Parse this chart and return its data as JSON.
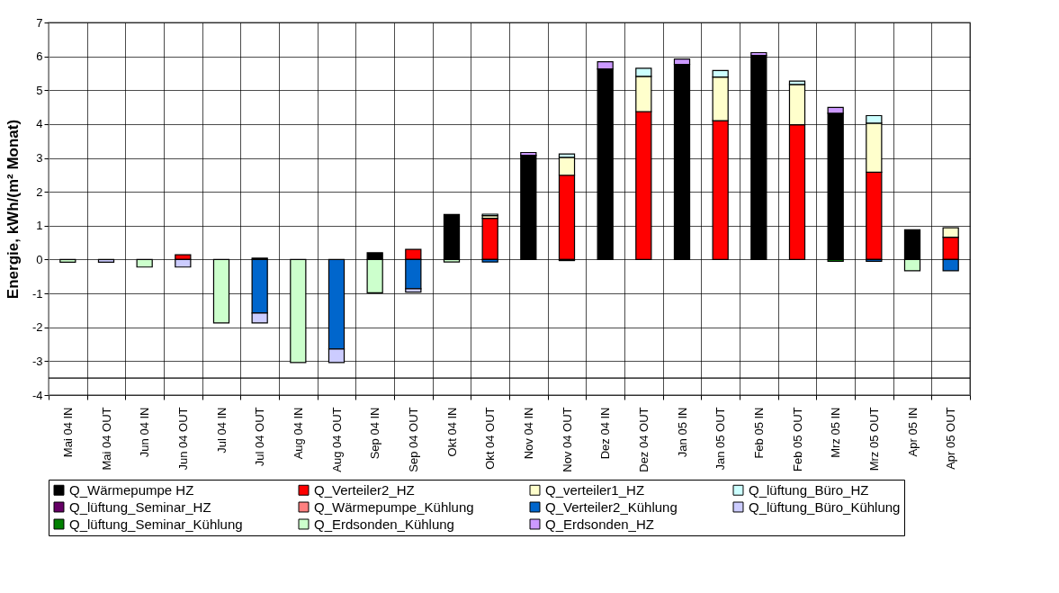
{
  "chart_data": {
    "type": "bar",
    "stacked": true,
    "ylabel": "Energie, kWh/(m² Monat)",
    "categories": [
      "Mai 04 IN",
      "Mai 04 OUT",
      "Jun 04 IN",
      "Jun 04 OUT",
      "Jul 04 IN",
      "Jul 04 OUT",
      "Aug 04 IN",
      "Aug 04 OUT",
      "Sep 04 IN",
      "Sep 04 OUT",
      "Okt 04 IN",
      "Okt 04 OUT",
      "Nov 04 IN",
      "Nov 04 OUT",
      "Dez 04 IN",
      "Dez 04 OUT",
      "Jan 05 IN",
      "Jan 05 OUT",
      "Feb 05 IN",
      "Feb 05 OUT",
      "Mrz 05 IN",
      "Mrz 05 OUT",
      "Apr 05 IN",
      "Apr 05 OUT"
    ],
    "ylim": [
      -4,
      7
    ],
    "yticks": [
      -4,
      -3,
      -2,
      -1,
      0,
      1,
      2,
      3,
      4,
      5,
      6,
      7
    ],
    "grid": true,
    "legend": "bottom",
    "ref_lines": [
      {
        "axis": "y",
        "value": -3.5,
        "color": "#000000"
      }
    ],
    "series": [
      {
        "name": "Q_Wärmepumpe HZ",
        "color": "#000000",
        "values": [
          null,
          null,
          null,
          null,
          null,
          0.04,
          null,
          null,
          0.2,
          null,
          1.33,
          null,
          3.08,
          null,
          5.63,
          null,
          5.76,
          null,
          6.03,
          null,
          4.32,
          null,
          0.88,
          null
        ]
      },
      {
        "name": "Q_Verteiler2_HZ",
        "color": "#ff0000",
        "values": [
          null,
          null,
          null,
          0.14,
          null,
          null,
          null,
          null,
          null,
          0.3,
          null,
          1.22,
          null,
          2.49,
          null,
          4.37,
          null,
          4.1,
          null,
          3.98,
          null,
          2.58,
          null,
          0.66
        ]
      },
      {
        "name": "Q_verteiler1_HZ",
        "color": "#ffffcc",
        "values": [
          null,
          null,
          null,
          null,
          null,
          null,
          null,
          null,
          null,
          null,
          null,
          0.08,
          null,
          0.53,
          null,
          1.04,
          null,
          1.29,
          null,
          1.19,
          null,
          1.45,
          null,
          0.28
        ]
      },
      {
        "name": "Q_lüftung_Büro_HZ",
        "color": "#ccffff",
        "values": [
          null,
          null,
          null,
          null,
          null,
          null,
          null,
          null,
          null,
          null,
          null,
          0.04,
          null,
          0.1,
          null,
          0.24,
          null,
          0.19,
          null,
          0.1,
          null,
          0.22,
          null,
          null
        ]
      },
      {
        "name": "Q_lüftung_Seminar_HZ",
        "color": "#660066",
        "values": [
          null,
          null,
          null,
          null,
          null,
          null,
          null,
          null,
          null,
          null,
          null,
          null,
          null,
          null,
          null,
          null,
          null,
          null,
          null,
          null,
          null,
          null,
          null,
          null
        ]
      },
      {
        "name": "Q_Wärmepumpe_Kühlung",
        "color": "#ff8080",
        "values": [
          null,
          null,
          null,
          null,
          null,
          null,
          null,
          null,
          null,
          null,
          null,
          null,
          null,
          null,
          null,
          null,
          null,
          null,
          null,
          null,
          null,
          null,
          null,
          null
        ]
      },
      {
        "name": "Q_Verteiler2_Kühlung",
        "color": "#0066cc",
        "values": [
          null,
          null,
          null,
          null,
          null,
          -1.58,
          null,
          -2.64,
          null,
          -0.86,
          null,
          -0.07,
          null,
          -0.03,
          null,
          null,
          null,
          null,
          null,
          null,
          null,
          -0.05,
          null,
          -0.33
        ]
      },
      {
        "name": "Q_lüftung_Büro_Kühlung",
        "color": "#ccccff",
        "values": [
          null,
          -0.08,
          null,
          -0.22,
          null,
          -0.29,
          null,
          -0.4,
          null,
          -0.1,
          null,
          null,
          null,
          null,
          null,
          null,
          null,
          null,
          null,
          null,
          null,
          null,
          null,
          null
        ]
      },
      {
        "name": "Q_lüftung_Seminar_Kühlung",
        "color": "#008000",
        "values": [
          null,
          null,
          null,
          null,
          null,
          null,
          null,
          null,
          null,
          null,
          null,
          null,
          null,
          null,
          null,
          null,
          null,
          null,
          null,
          null,
          -0.05,
          null,
          null,
          null
        ]
      },
      {
        "name": "Q_Erdsonden_Kühlung",
        "color": "#ccffcc",
        "values": [
          -0.08,
          null,
          -0.22,
          null,
          -1.87,
          null,
          -3.04,
          null,
          -0.98,
          null,
          -0.07,
          null,
          null,
          null,
          null,
          null,
          null,
          null,
          null,
          null,
          null,
          null,
          -0.33,
          null
        ]
      },
      {
        "name": "Q_Erdsonden_HZ",
        "color": "#cc99ff",
        "values": [
          null,
          null,
          null,
          null,
          null,
          null,
          null,
          null,
          null,
          null,
          null,
          null,
          0.08,
          null,
          0.21,
          null,
          0.16,
          null,
          0.08,
          null,
          0.17,
          null,
          null,
          null
        ]
      }
    ]
  }
}
